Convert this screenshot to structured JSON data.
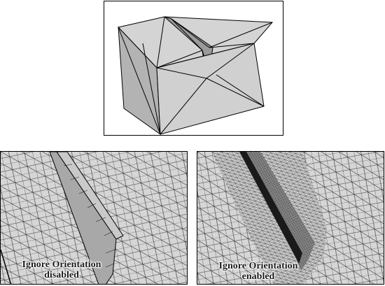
{
  "figures": [
    {
      "id": "base-model",
      "caption_line1": "",
      "caption_line2": ""
    },
    {
      "id": "mesh-orientation-disabled",
      "caption_line1": "Ignore Orientation",
      "caption_line2": "disabled"
    },
    {
      "id": "mesh-orientation-enabled",
      "caption_line1": "Ignore Orientation",
      "caption_line2": "enabled"
    }
  ],
  "colors": {
    "face_light": "#d4d4d4",
    "face_mid": "#bdbdbd",
    "face_dark": "#a5a5a5",
    "edge": "#000000",
    "mesh_line": "#2b2b2b"
  }
}
